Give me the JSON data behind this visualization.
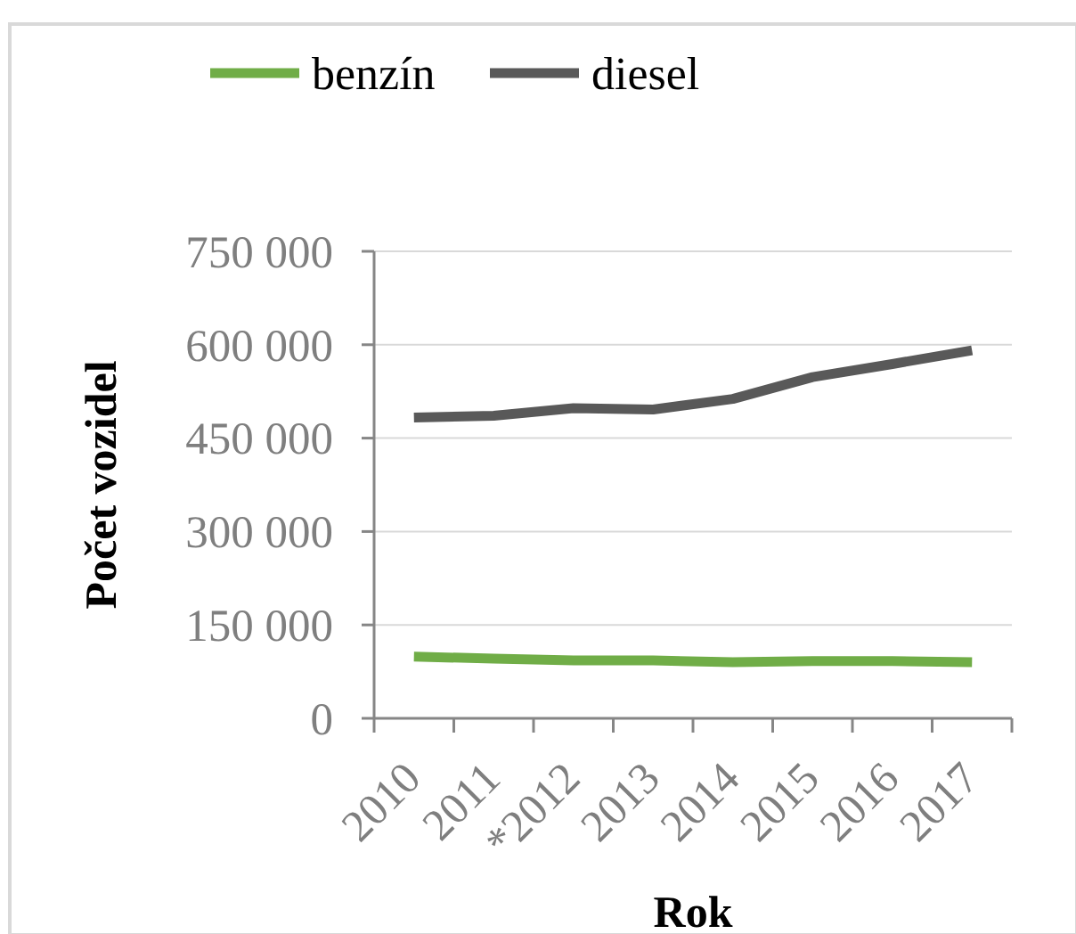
{
  "chart_data": {
    "type": "line",
    "xlabel": "Rok",
    "ylabel": "Počet vozidel",
    "categories": [
      "2010",
      "2011",
      "*2012",
      "2013",
      "2014",
      "2015",
      "2016",
      "2017"
    ],
    "ylim": [
      0,
      750000
    ],
    "yticks": [
      0,
      {
        "value": 150000,
        "label": "150 000"
      },
      {
        "value": 300000,
        "label": "300 000"
      },
      {
        "value": 450000,
        "label": "450 000"
      },
      {
        "value": 600000,
        "label": "600 000"
      },
      {
        "value": 750000,
        "label": "750 000"
      }
    ],
    "grid": "y",
    "legend": "top",
    "line_style": "solid",
    "series": [
      {
        "name": "benzín",
        "color": "#70ad47",
        "values": [
          99000,
          96000,
          93000,
          93000,
          90000,
          92000,
          92000,
          90000
        ]
      },
      {
        "name": "diesel",
        "color": "#595959",
        "values": [
          483000,
          486000,
          498000,
          496000,
          513000,
          548000,
          569000,
          591000
        ]
      }
    ]
  }
}
